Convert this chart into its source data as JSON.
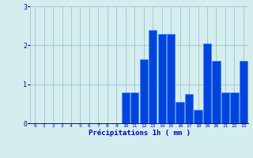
{
  "hours": [
    0,
    1,
    2,
    3,
    4,
    5,
    6,
    7,
    8,
    9,
    10,
    11,
    12,
    13,
    14,
    15,
    16,
    17,
    18,
    19,
    20,
    21,
    22,
    23
  ],
  "values": [
    0,
    0,
    0,
    0,
    0,
    0,
    0,
    0,
    0,
    0,
    0.8,
    0.8,
    1.65,
    2.4,
    2.3,
    2.3,
    0.55,
    0.75,
    0.35,
    2.05,
    1.6,
    0.8,
    0.8,
    1.6
  ],
  "bar_color": "#0044dd",
  "bar_edge_color": "#4488ff",
  "background_color": "#d4eef0",
  "grid_color": "#a8c8cc",
  "xlabel": "Précipitations 1h ( mm )",
  "xlabel_color": "#0000bb",
  "tick_color": "#0000bb",
  "ylim": [
    0,
    3
  ],
  "yticks": [
    0,
    1,
    2,
    3
  ],
  "xlim": [
    -0.5,
    23.5
  ],
  "figwidth": 3.2,
  "figheight": 2.0,
  "dpi": 100
}
